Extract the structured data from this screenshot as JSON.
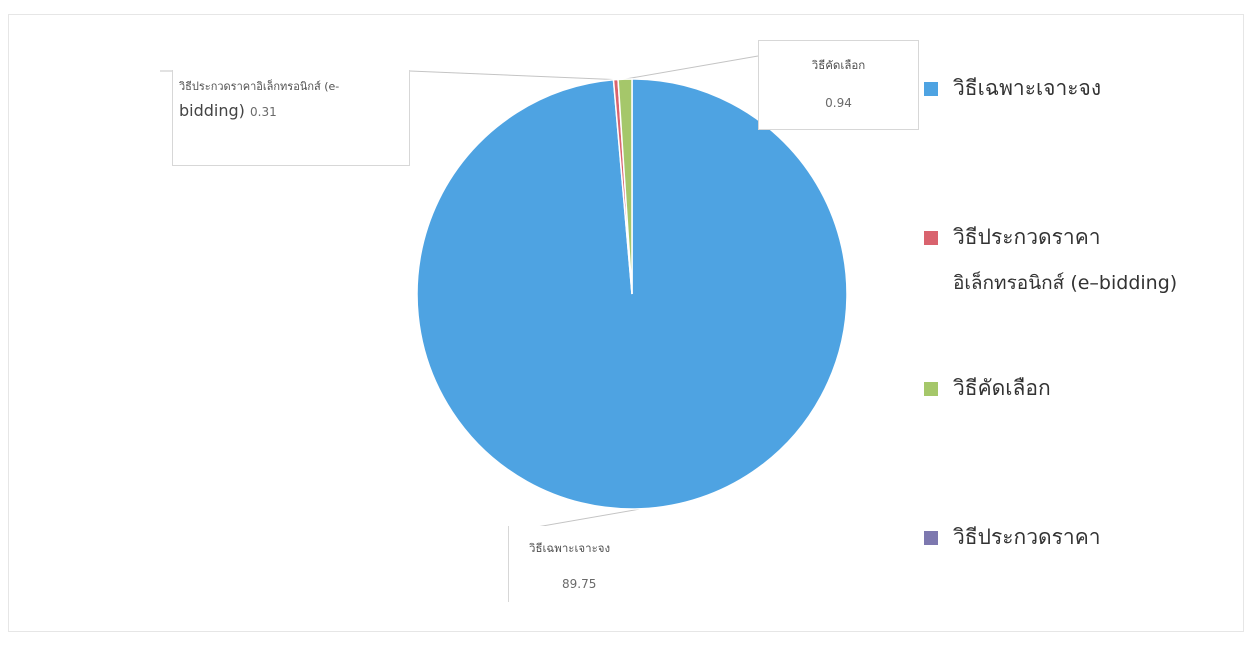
{
  "chart_data": {
    "type": "pie",
    "categories": [
      "วิธีเฉพาะเจาะจง",
      "วิธีประกวดราคาอิเล็กทรอนิกส์ (e-bidding)",
      "วิธีคัดเลือก",
      "วิธีประกวดราคา"
    ],
    "values": [
      89.75,
      0.31,
      0.94,
      0
    ],
    "colors": [
      "#4EA3E2",
      "#D9636E",
      "#A5C76A",
      "#7D78AF"
    ],
    "data_labels": [
      {
        "name": "วิธีเฉพาะเจาะจง",
        "value": "89.75"
      },
      {
        "name": "วิธีประกวดราคาอิเล็กทรอนิกส์ (e-",
        "name_tail": "bidding)",
        "value": "0.31"
      },
      {
        "name": "วิธีคัดเลือก",
        "value": "0.94"
      }
    ],
    "legend": {
      "position": "right",
      "items": [
        {
          "label": "วิธีเฉพาะเจาะจง",
          "color": "#4EA3E2"
        },
        {
          "label_line1": "วิธีประกวดราคา",
          "label_line2": "อิเล็กทรอนิกส์ (e–bidding)",
          "color": "#D9636E"
        },
        {
          "label": "วิธีคัดเลือก",
          "color": "#A5C76A"
        },
        {
          "label": "วิธีประกวดราคา",
          "color": "#7D78AF"
        }
      ]
    }
  }
}
